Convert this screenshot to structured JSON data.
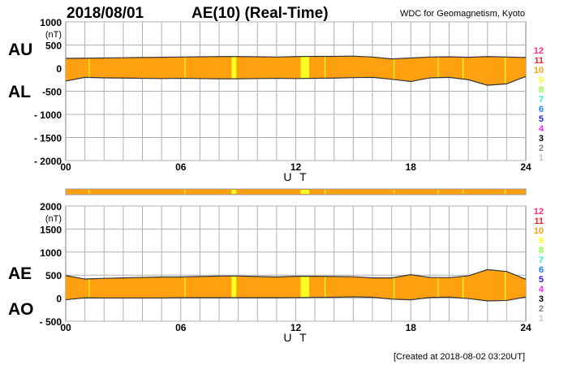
{
  "header": {
    "date": "2018/08/01",
    "title": "AE(10) (Real-Time)",
    "source": "WDC for Geomagnetism, Kyoto"
  },
  "footer": {
    "created": "[Created at 2018-08-02 03:20UT]"
  },
  "legend": {
    "items": [
      {
        "label": "12",
        "color": "#ff2a80"
      },
      {
        "label": "11",
        "color": "#ff2020"
      },
      {
        "label": "10",
        "color": "#ffa010"
      },
      {
        "label": "9",
        "color": "#ffff20"
      },
      {
        "label": "8",
        "color": "#90ff30"
      },
      {
        "label": "7",
        "color": "#20f0d0"
      },
      {
        "label": "6",
        "color": "#2080ff"
      },
      {
        "label": "5",
        "color": "#2020e0"
      },
      {
        "label": "4",
        "color": "#ff20ff"
      },
      {
        "label": "3",
        "color": "#000000"
      },
      {
        "label": "2",
        "color": "#808080"
      },
      {
        "label": "1",
        "color": "#c8c8c8"
      }
    ]
  },
  "chart_data": [
    {
      "type": "area",
      "name": "AU/AL",
      "upper_label": "AU",
      "lower_label": "AL",
      "ylabel": "(nT)",
      "xlabel": "U T",
      "xlim": [
        0,
        24
      ],
      "ylim": [
        -2000,
        1000
      ],
      "yticks": [
        "1000",
        "500",
        "0",
        "-500",
        "- 1000",
        "- 1500",
        "- 2000"
      ],
      "ytick_values": [
        1000,
        500,
        0,
        -500,
        -1000,
        -1500,
        -2000
      ],
      "xticks": [
        "00",
        "06",
        "12",
        "18",
        "24"
      ],
      "xtick_values": [
        0,
        6,
        12,
        18,
        24
      ],
      "grid": true,
      "x": [
        0,
        1,
        2,
        3,
        4,
        5,
        6,
        7,
        8,
        9,
        10,
        11,
        12,
        13,
        14,
        15,
        16,
        17,
        18,
        19,
        20,
        21,
        22,
        23,
        24
      ],
      "series": [
        {
          "name": "AU",
          "values": [
            210,
            215,
            220,
            225,
            230,
            235,
            240,
            245,
            250,
            250,
            245,
            240,
            250,
            255,
            255,
            260,
            240,
            200,
            220,
            240,
            245,
            235,
            250,
            240,
            230
          ]
        },
        {
          "name": "AL",
          "values": [
            -280,
            -200,
            -210,
            -215,
            -220,
            -225,
            -220,
            -225,
            -230,
            -230,
            -225,
            -220,
            -225,
            -220,
            -215,
            -205,
            -200,
            -240,
            -290,
            -210,
            -200,
            -250,
            -370,
            -340,
            -180
          ]
        }
      ]
    },
    {
      "type": "area",
      "name": "AE/AO",
      "upper_label": "AE",
      "lower_label": "AO",
      "ylabel": "(nT)",
      "xlabel": "U T",
      "xlim": [
        0,
        24
      ],
      "ylim": [
        -500,
        2000
      ],
      "yticks": [
        "2000",
        "1500",
        "1000",
        "500",
        "0",
        "- 500"
      ],
      "ytick_values": [
        2000,
        1500,
        1000,
        500,
        0,
        -500
      ],
      "xticks": [
        "00",
        "06",
        "12",
        "18",
        "24"
      ],
      "xtick_values": [
        0,
        6,
        12,
        18,
        24
      ],
      "grid": true,
      "x": [
        0,
        1,
        2,
        3,
        4,
        5,
        6,
        7,
        8,
        9,
        10,
        11,
        12,
        13,
        14,
        15,
        16,
        17,
        18,
        19,
        20,
        21,
        22,
        23,
        24
      ],
      "series": [
        {
          "name": "AE",
          "values": [
            490,
            415,
            430,
            440,
            450,
            460,
            460,
            470,
            480,
            480,
            470,
            460,
            475,
            475,
            470,
            465,
            440,
            440,
            510,
            450,
            445,
            485,
            620,
            580,
            410
          ]
        },
        {
          "name": "AO",
          "values": [
            -35,
            8,
            5,
            5,
            5,
            5,
            10,
            10,
            10,
            10,
            10,
            10,
            12,
            18,
            20,
            28,
            20,
            -20,
            -35,
            15,
            23,
            -8,
            -60,
            -50,
            25
          ]
        }
      ]
    }
  ],
  "station_count_bar": {
    "default_count": 10,
    "nine_station_periods_ut": [
      [
        1.2,
        1.25
      ],
      [
        6.2,
        6.25
      ],
      [
        8.65,
        8.9
      ],
      [
        12.25,
        12.7
      ],
      [
        13.5,
        13.55
      ],
      [
        17.1,
        17.15
      ],
      [
        19.4,
        19.45
      ],
      [
        20.7,
        20.75
      ],
      [
        22.9,
        22.95
      ]
    ]
  }
}
